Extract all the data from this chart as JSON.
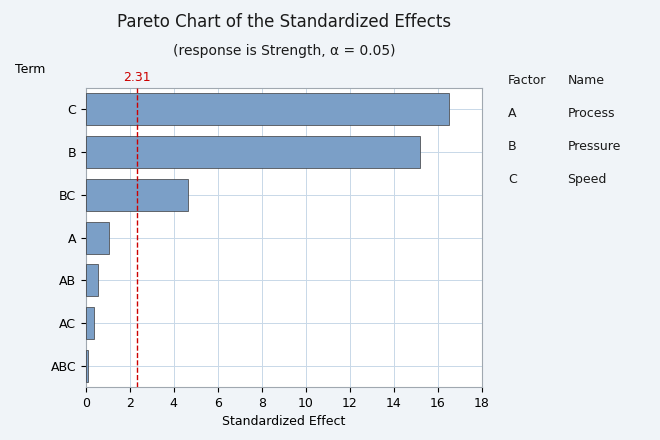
{
  "title_line1": "Pareto Chart of the Standardized Effects",
  "title_line2": "(response is Strength, α = 0.05)",
  "xlabel": "Standardized Effect",
  "ylabel": "Term",
  "terms": [
    "ABC",
    "AC",
    "AB",
    "A",
    "BC",
    "B",
    "C"
  ],
  "values": [
    0.08,
    0.35,
    0.55,
    1.05,
    4.65,
    15.2,
    16.5
  ],
  "bar_color": "#7b9fc7",
  "bar_edgecolor": "#3a3a3a",
  "reference_line": 2.31,
  "reference_color": "#cc0000",
  "reference_label": "2.31",
  "xlim": [
    0,
    18
  ],
  "xticks": [
    0,
    2,
    4,
    6,
    8,
    10,
    12,
    14,
    16,
    18
  ],
  "grid_color": "#c8d8e8",
  "background_color": "#f0f4f8",
  "plot_bg_color": "#ffffff",
  "legend_factors": [
    "A",
    "B",
    "C"
  ],
  "legend_names": [
    "Process",
    "Pressure",
    "Speed"
  ],
  "legend_header_factor": "Factor",
  "legend_header_name": "Name",
  "title_fontsize": 12,
  "subtitle_fontsize": 10,
  "axis_label_fontsize": 9,
  "tick_fontsize": 9,
  "legend_fontsize": 9
}
